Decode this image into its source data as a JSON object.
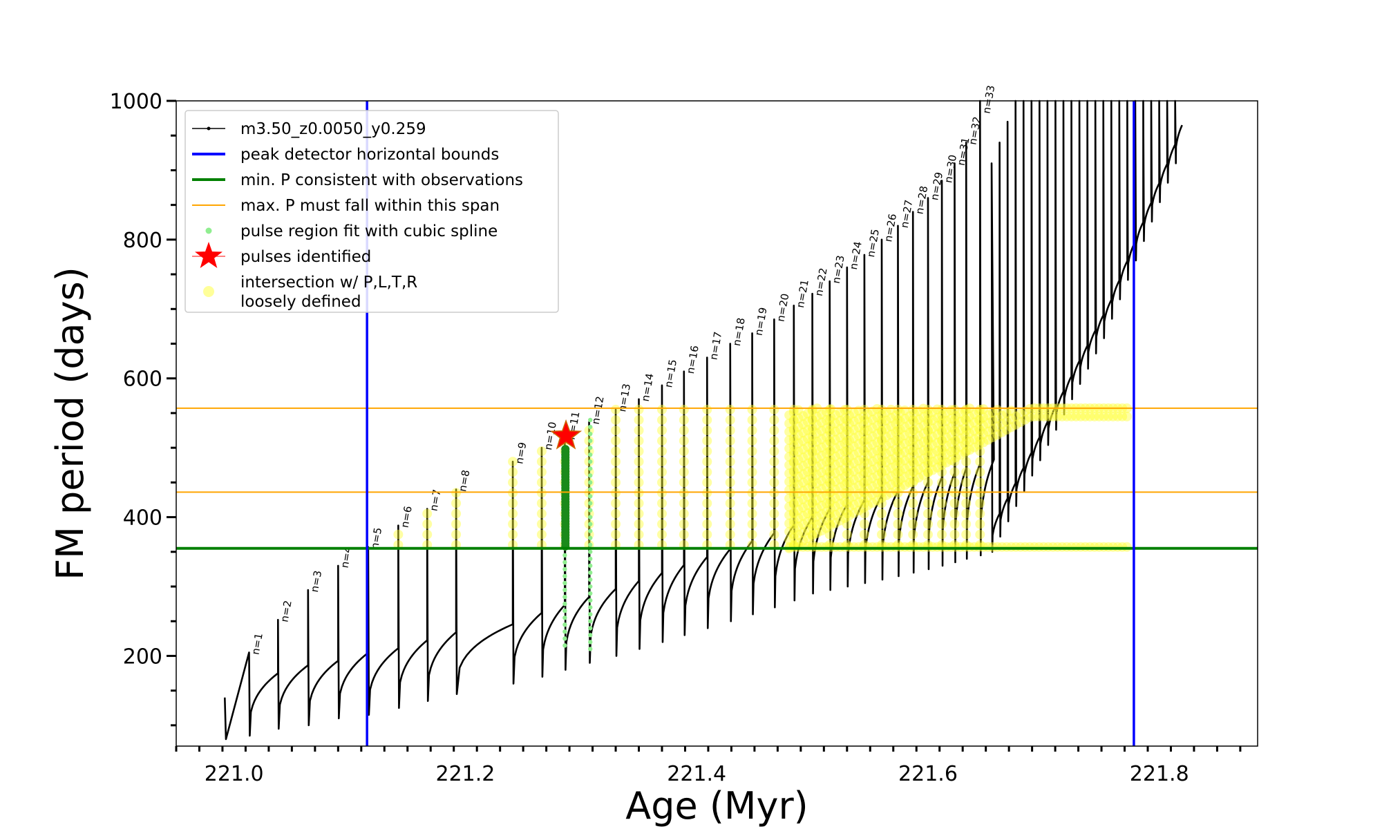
{
  "chart_data": {
    "type": "line",
    "xlabel": "Age (Myr)",
    "ylabel": "FM period (days)",
    "xlim": [
      220.95,
      221.885
    ],
    "ylim": [
      70,
      1000
    ],
    "x_ticks": [
      221.0,
      221.2,
      221.4,
      221.6,
      221.8
    ],
    "x_tick_labels": [
      "221.0",
      "221.2",
      "221.4",
      "221.6",
      "221.8"
    ],
    "y_ticks": [
      200,
      400,
      600,
      800,
      1000
    ],
    "y_tick_labels": [
      "200",
      "400",
      "600",
      "800",
      "1000"
    ],
    "grid": false,
    "legend_position": "upper-left",
    "legend": [
      {
        "label": "m3.50_z0.0050_y0.259",
        "kind": "line-marker",
        "color": "#000000"
      },
      {
        "label": "peak detector horizontal bounds",
        "kind": "line",
        "color": "#0000ff"
      },
      {
        "label": "min. P consistent with observations",
        "kind": "line",
        "color": "#008000"
      },
      {
        "label": "max. P must fall within this span",
        "kind": "line",
        "color": "#ffa500"
      },
      {
        "label": "pulse region fit with cubic spline",
        "kind": "dot",
        "color": "#90ee90"
      },
      {
        "label": "pulses identified",
        "kind": "star",
        "color": "#ff0000"
      },
      {
        "label": "intersection w/ P,L,T,R",
        "label2": "loosely defined",
        "kind": "circle",
        "color": "#ffff99"
      }
    ],
    "vertical_lines": [
      {
        "x": 221.115,
        "color": "#0000ff"
      },
      {
        "x": 221.778,
        "color": "#0000ff"
      }
    ],
    "horizontal_lines": [
      {
        "y": 355,
        "color": "#008000"
      },
      {
        "y": 436,
        "color": "#ffa500"
      },
      {
        "y": 557,
        "color": "#ffa500"
      }
    ],
    "pulses": [
      {
        "label": "n=1",
        "x": 221.013,
        "peak": 205,
        "base": 85
      },
      {
        "label": "n=2",
        "x": 221.038,
        "peak": 252,
        "base": 95
      },
      {
        "label": "n=3",
        "x": 221.064,
        "peak": 295,
        "base": 100
      },
      {
        "label": "n=4",
        "x": 221.09,
        "peak": 330,
        "base": 110
      },
      {
        "label": "n=5",
        "x": 221.116,
        "peak": 357,
        "base": 115
      },
      {
        "label": "n=6",
        "x": 221.142,
        "peak": 388,
        "base": 125
      },
      {
        "label": "n=7",
        "x": 221.167,
        "peak": 412,
        "base": 135
      },
      {
        "label": "n=8",
        "x": 221.192,
        "peak": 440,
        "base": 145
      },
      {
        "label": "n=9",
        "x": 221.241,
        "peak": 480,
        "base": 160
      },
      {
        "label": "n=10",
        "x": 221.266,
        "peak": 500,
        "base": 170
      },
      {
        "label": "n=11",
        "x": 221.286,
        "peak": 515,
        "base": 180
      },
      {
        "label": "n=12",
        "x": 221.307,
        "peak": 537,
        "base": 190
      },
      {
        "label": "n=13",
        "x": 221.33,
        "peak": 555,
        "base": 200
      },
      {
        "label": "n=14",
        "x": 221.35,
        "peak": 570,
        "base": 210
      },
      {
        "label": "n=15",
        "x": 221.37,
        "peak": 590,
        "base": 220
      },
      {
        "label": "n=16",
        "x": 221.389,
        "peak": 610,
        "base": 230
      },
      {
        "label": "n=17",
        "x": 221.409,
        "peak": 630,
        "base": 240
      },
      {
        "label": "n=18",
        "x": 221.429,
        "peak": 650,
        "base": 250
      },
      {
        "label": "n=19",
        "x": 221.448,
        "peak": 665,
        "base": 260
      },
      {
        "label": "n=20",
        "x": 221.467,
        "peak": 685,
        "base": 270
      },
      {
        "label": "n=21",
        "x": 221.484,
        "peak": 705,
        "base": 280
      },
      {
        "label": "n=22",
        "x": 221.5,
        "peak": 722,
        "base": 290
      },
      {
        "label": "n=23",
        "x": 221.515,
        "peak": 740,
        "base": 295
      },
      {
        "label": "n=24",
        "x": 221.53,
        "peak": 760,
        "base": 300
      },
      {
        "label": "n=25",
        "x": 221.545,
        "peak": 778,
        "base": 305
      },
      {
        "label": "n=26",
        "x": 221.56,
        "peak": 800,
        "base": 310
      },
      {
        "label": "n=27",
        "x": 221.574,
        "peak": 820,
        "base": 315
      },
      {
        "label": "n=28",
        "x": 221.587,
        "peak": 840,
        "base": 320
      },
      {
        "label": "n=29",
        "x": 221.6,
        "peak": 860,
        "base": 325
      },
      {
        "label": "n=30",
        "x": 221.612,
        "peak": 885,
        "base": 330
      },
      {
        "label": "n=31",
        "x": 221.623,
        "peak": 910,
        "base": 335
      },
      {
        "label": "n=32",
        "x": 221.633,
        "peak": 940,
        "base": 340
      },
      {
        "label": "n=33",
        "x": 221.645,
        "peak": 1000,
        "base": 345
      }
    ],
    "pulses_identified": [
      {
        "x": 221.287,
        "y": 517
      }
    ],
    "spline_fit_regions": [
      {
        "x": 221.286,
        "y_min": 215,
        "y_max": 500
      },
      {
        "x": 221.308,
        "y_min": 210,
        "y_max": 540
      }
    ]
  }
}
